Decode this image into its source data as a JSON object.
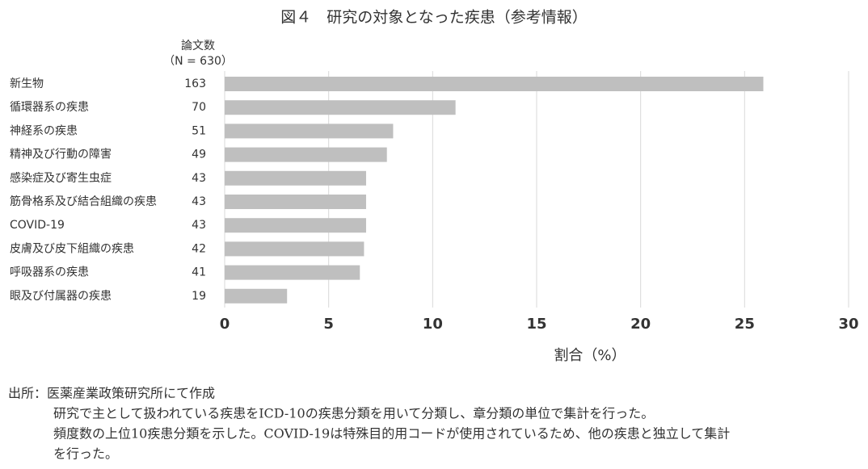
{
  "chart_data": {
    "type": "hbar",
    "title": "図４　研究の対象となった疾患（参考情報）",
    "count_header": "論文数",
    "count_total": "（N = 630）",
    "categories": [
      "新生物",
      "循環器系の疾患",
      "神経系の疾患",
      "精神及び行動の障害",
      "感染症及び寄生虫症",
      "筋骨格系及び結合組織の疾患",
      "COVID-19",
      "皮膚及び皮下組織の疾患",
      "呼吸器系の疾患",
      "眼及び付属器の疾患"
    ],
    "counts": [
      163,
      70,
      51,
      49,
      43,
      43,
      43,
      42,
      41,
      19
    ],
    "values": [
      25.9,
      11.1,
      8.1,
      7.8,
      6.8,
      6.8,
      6.8,
      6.7,
      6.5,
      3.0
    ],
    "color": "#bfbfbf",
    "xlabel": "割合（%）",
    "xlim": [
      0,
      30
    ],
    "xticks": [
      0,
      5,
      10,
      15,
      20,
      25,
      30
    ],
    "grid": true
  },
  "notes": {
    "source": "出所：医薬産業政策研究所にて作成",
    "lines": [
      "研究で主として扱われている疾患をICD-10の疾患分類を用いて分類し、章分類の単位で集計を行った。",
      "頻度数の上位10疾患分類を示した。COVID-19は特殊目的用コードが使用されているため、他の疾患と独立して集計",
      "を行った。"
    ]
  }
}
